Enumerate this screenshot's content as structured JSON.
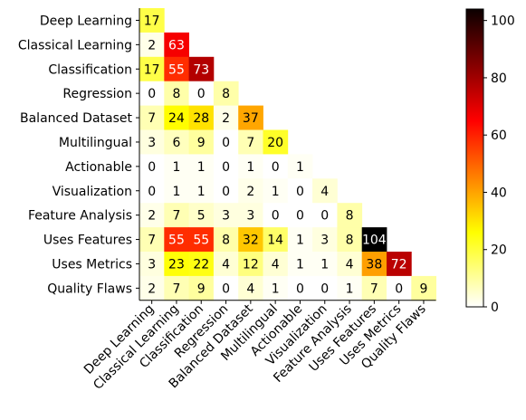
{
  "chart_data": {
    "type": "heatmap",
    "title": "",
    "xlabel": "",
    "ylabel": "",
    "categories": [
      "Deep Learning",
      "Classical Learning",
      "Classification",
      "Regression",
      "Balanced Dataset",
      "Multilingual",
      "Actionable",
      "Visualization",
      "Feature Analysis",
      "Uses Features",
      "Uses Metrics",
      "Quality Flaws"
    ],
    "matrix": [
      [
        17
      ],
      [
        2,
        63
      ],
      [
        17,
        55,
        73
      ],
      [
        0,
        8,
        0,
        8
      ],
      [
        7,
        24,
        28,
        2,
        37
      ],
      [
        3,
        6,
        9,
        0,
        7,
        20
      ],
      [
        0,
        1,
        1,
        0,
        1,
        0,
        1
      ],
      [
        0,
        1,
        1,
        0,
        2,
        1,
        0,
        4
      ],
      [
        2,
        7,
        5,
        3,
        3,
        0,
        0,
        0,
        8
      ],
      [
        7,
        55,
        55,
        8,
        32,
        14,
        1,
        3,
        8,
        104
      ],
      [
        3,
        23,
        22,
        4,
        12,
        4,
        1,
        1,
        4,
        38,
        72
      ],
      [
        2,
        7,
        9,
        0,
        4,
        1,
        0,
        0,
        1,
        7,
        0,
        9
      ]
    ],
    "colorscale": "hot_r",
    "colorbar": {
      "min": 0,
      "max": 104,
      "ticks": [
        "0",
        "20",
        "40",
        "60",
        "80",
        "100"
      ],
      "tick_values": [
        0,
        20,
        40,
        60,
        80,
        100
      ]
    },
    "grid": false,
    "legend": "colorbar-right"
  }
}
